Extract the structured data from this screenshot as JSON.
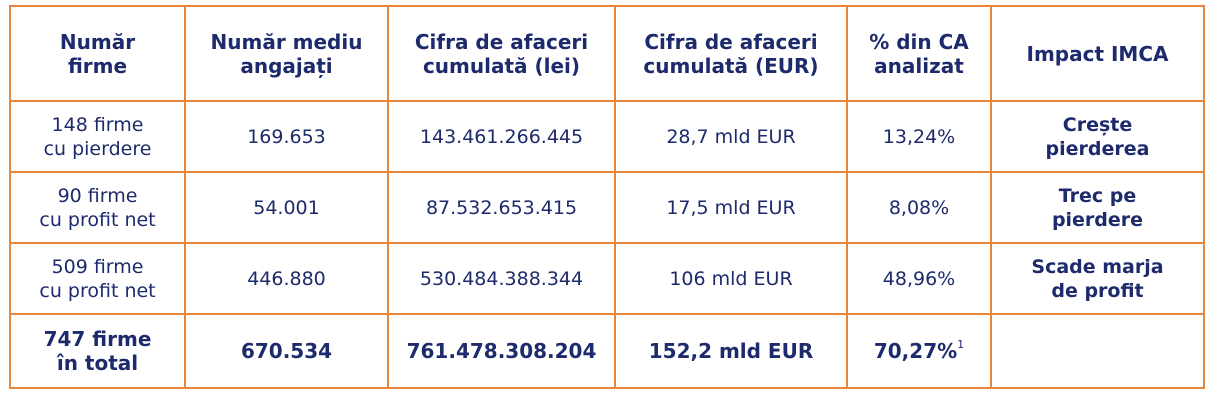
{
  "headers": [
    {
      "line1": "Număr",
      "line2": "firme"
    },
    {
      "line1": "Număr mediu",
      "line2": "angajați"
    },
    {
      "line1": "Cifra de afaceri",
      "line2": "cumulată (lei)"
    },
    {
      "line1": "Cifra de afaceri",
      "line2": "cumulată (EUR)"
    },
    {
      "line1": "% din CA",
      "line2": "analizat"
    },
    {
      "line1": "Impact IMCA",
      "line2": ""
    }
  ],
  "rows": [
    {
      "firms": {
        "line1": "148 firme",
        "line2": "cu pierdere"
      },
      "employees": "169.653",
      "turnover_lei": "143.461.266.445",
      "turnover_eur": "28,7 mld EUR",
      "share": "13,24%",
      "impact": {
        "line1": "Crește",
        "line2": "pierderea"
      }
    },
    {
      "firms": {
        "line1": "90 firme",
        "line2": "cu profit net"
      },
      "employees": "54.001",
      "turnover_lei": "87.532.653.415",
      "turnover_eur": "17,5 mld EUR",
      "share": "8,08%",
      "impact": {
        "line1": "Trec pe",
        "line2": "pierdere"
      }
    },
    {
      "firms": {
        "line1": "509 firme",
        "line2": "cu profit net"
      },
      "employees": "446.880",
      "turnover_lei": "530.484.388.344",
      "turnover_eur": "106 mld EUR",
      "share": "48,96%",
      "impact": {
        "line1": "Scade marja",
        "line2": "de profit"
      }
    }
  ],
  "total": {
    "firms": {
      "line1": "747 firme",
      "line2": "în total"
    },
    "employees": "670.534",
    "turnover_lei": "761.478.308.204",
    "turnover_eur": "152,2 mld EUR",
    "share": "70,27%",
    "share_footnote": "1",
    "impact": ""
  },
  "colors": {
    "border": "#e8873c",
    "text": "#1d2a6b"
  }
}
